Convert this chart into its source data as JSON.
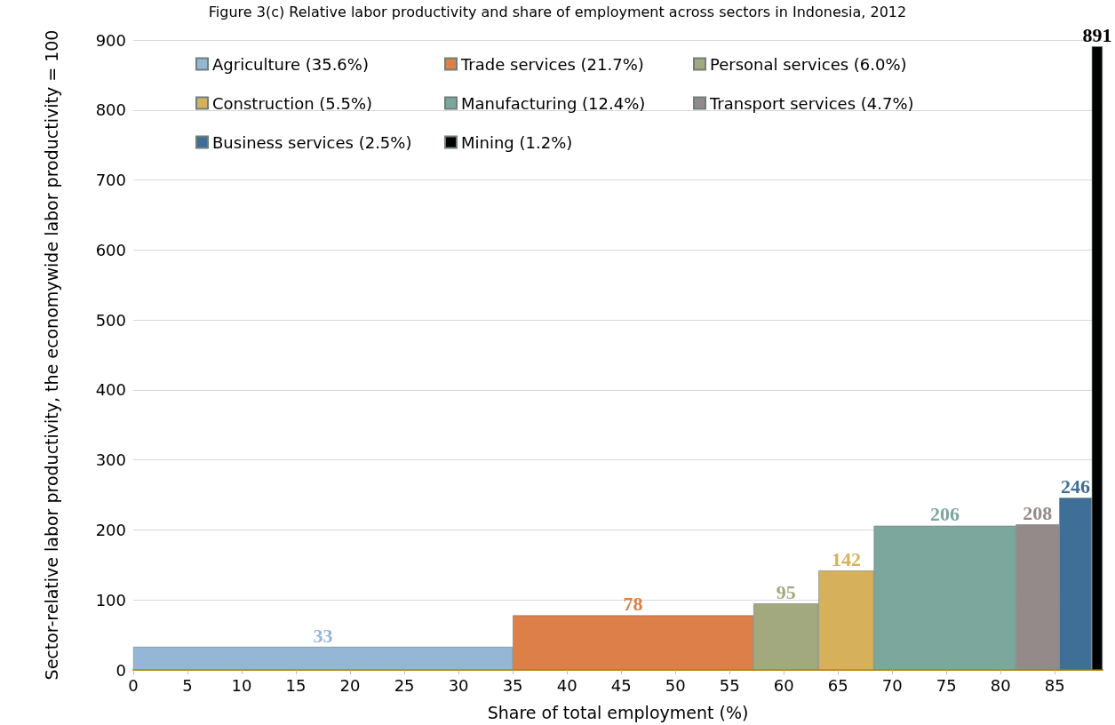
{
  "chart_data": {
    "type": "histogram",
    "title": "Figure 3(c) Relative labor productivity and share of employment across sectors in Indonesia, 2012",
    "xlabel": "Share of total employment (%)",
    "ylabel": "Sector-relative labor productivity, the economywide labor productivity = 100",
    "bins": [
      0,
      35,
      57.2,
      63.2,
      68.3,
      81.4,
      85.4,
      88.4,
      89.4
    ],
    "series": [
      {
        "name": "Agriculture (35.6%)",
        "color": "#95b7d5",
        "values": [
          33,
          null,
          null,
          null,
          null,
          null,
          null,
          null
        ]
      },
      {
        "name": "Trade services (21.7%)",
        "color": "#dd7f48",
        "values": [
          null,
          78,
          null,
          null,
          null,
          null,
          null,
          null
        ]
      },
      {
        "name": "Personal services (6.0%)",
        "color": "#a3a97e",
        "values": [
          null,
          null,
          95,
          null,
          null,
          null,
          null,
          null
        ]
      },
      {
        "name": "Construction (5.5%)",
        "color": "#d7b05c",
        "values": [
          null,
          null,
          null,
          142,
          null,
          null,
          null,
          null
        ]
      },
      {
        "name": "Manufacturing (12.4%)",
        "color": "#7ba79d",
        "values": [
          null,
          null,
          null,
          null,
          206,
          null,
          null,
          null
        ]
      },
      {
        "name": "Transport services (4.7%)",
        "color": "#958a8a",
        "values": [
          null,
          null,
          null,
          null,
          null,
          208,
          null,
          null
        ]
      },
      {
        "name": "Business services (2.5%)",
        "color": "#3f6e97",
        "values": [
          null,
          null,
          null,
          null,
          null,
          null,
          246,
          null
        ]
      },
      {
        "name": "Mining (1.2%)",
        "color": "#000000",
        "values": [
          null,
          null,
          null,
          null,
          null,
          null,
          null,
          891
        ]
      }
    ],
    "xlim": [
      0,
      89.4
    ],
    "xticks": [
      0,
      5,
      10,
      15,
      20,
      25,
      30,
      35,
      40,
      45,
      50,
      55,
      60,
      65,
      70,
      75,
      80,
      85
    ],
    "ylim": [
      0,
      900
    ],
    "yticks": [
      0,
      100,
      200,
      300,
      400,
      500,
      600,
      700,
      800,
      900
    ],
    "data_labels": true,
    "grid": "y",
    "legend": "top left"
  }
}
